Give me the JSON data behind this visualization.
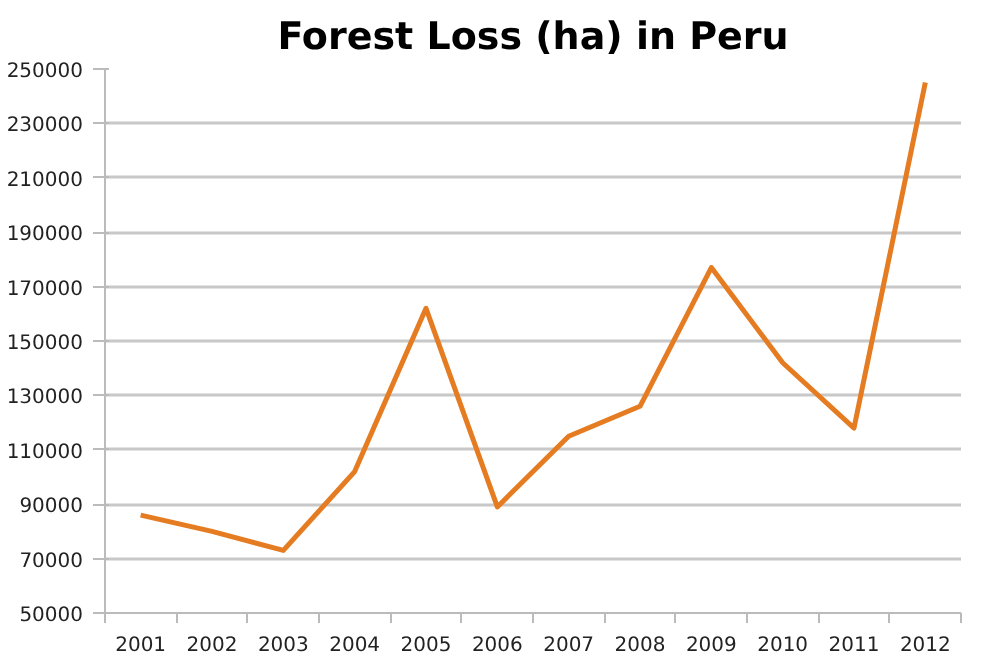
{
  "chart_data": {
    "type": "line",
    "title": "Forest Loss (ha) in Peru",
    "categories": [
      "2001",
      "2002",
      "2003",
      "2004",
      "2005",
      "2006",
      "2007",
      "2008",
      "2009",
      "2010",
      "2011",
      "2012"
    ],
    "series": [
      {
        "color": "#e57c22",
        "values": [
          86000,
          80000,
          73000,
          102000,
          162000,
          89000,
          115000,
          126000,
          177000,
          142000,
          118000,
          245000
        ]
      }
    ],
    "ylim": [
      50000,
      250000
    ],
    "yticks": [
      50000,
      70000,
      90000,
      110000,
      130000,
      150000,
      170000,
      190000,
      210000,
      230000,
      250000
    ],
    "grid": "y",
    "marker": "none",
    "line_style": "solid"
  }
}
